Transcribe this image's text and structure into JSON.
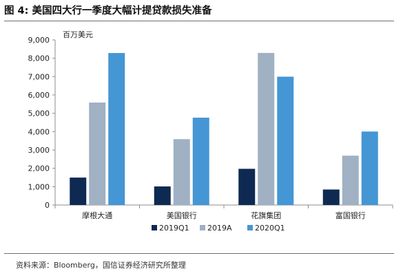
{
  "figure": {
    "title": "图 4:  美国四大行一季度大幅计提贷款损失准备",
    "source": "资料来源：Bloomberg，国信证券经济研究所整理"
  },
  "chart_data": {
    "type": "bar",
    "unit_label": "百万美元",
    "categories": [
      "摩根大通",
      "美国银行",
      "花旗集团",
      "富国银行"
    ],
    "series": [
      {
        "name": "2019Q1",
        "color": "#0e2a52",
        "values": [
          1495,
          1013,
          1973,
          845
        ]
      },
      {
        "name": "2019A",
        "color": "#9fb1c3",
        "values": [
          5585,
          3590,
          8290,
          2690
        ]
      },
      {
        "name": "2020Q1",
        "color": "#4596d4",
        "values": [
          8285,
          4761,
          6995,
          4005
        ]
      }
    ],
    "ylim": [
      0,
      9000
    ],
    "yticks": [
      "0",
      "1,000",
      "2,000",
      "3,000",
      "4,000",
      "5,000",
      "6,000",
      "7,000",
      "8,000",
      "9,000"
    ],
    "ytick_values": [
      0,
      1000,
      2000,
      3000,
      4000,
      5000,
      6000,
      7000,
      8000,
      9000
    ],
    "grid": false,
    "legend_position": "bottom-center"
  }
}
